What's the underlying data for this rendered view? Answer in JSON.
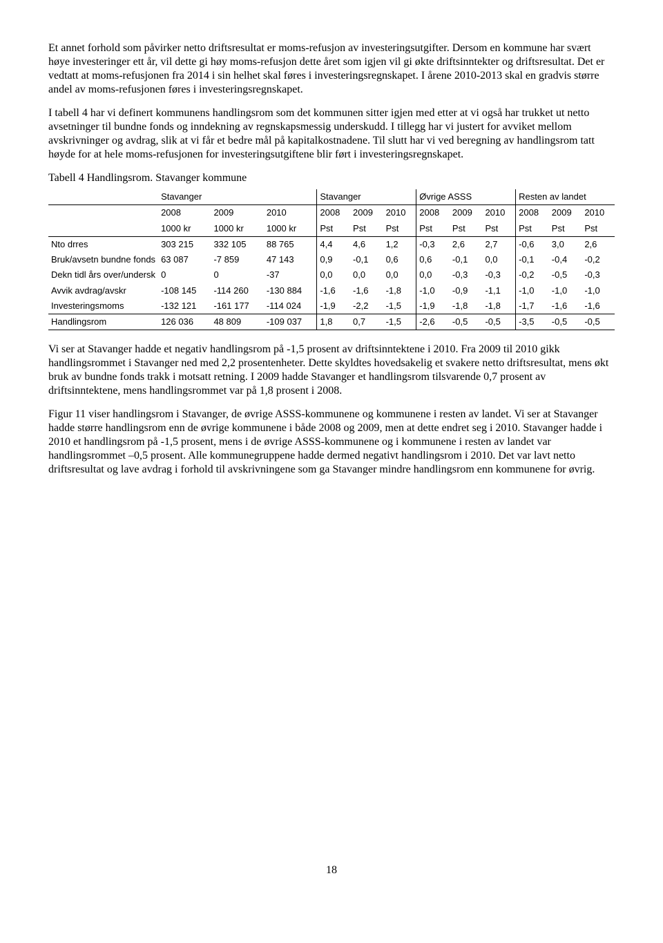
{
  "paragraphs": {
    "p1": "Et annet forhold som påvirker netto driftsresultat er moms-refusjon av investeringsutgifter. Dersom en kommune har svært høye investeringer ett år, vil dette gi høy moms-refusjon dette året som igjen vil gi økte driftsinntekter og driftsresultat. Det er vedtatt at moms-refusjonen fra 2014 i sin helhet skal føres i investeringsregnskapet. I årene 2010-2013 skal en gradvis større andel av moms-refusjonen føres i investeringsregnskapet.",
    "p2": "I tabell 4 har vi definert kommunens handlingsrom som det kommunen sitter igjen med etter at vi også har trukket ut netto avsetninger til bundne fonds og inndekning av regnskapsmessig underskudd. I tillegg har vi justert for avviket mellom avskrivninger og avdrag, slik at vi får et bedre mål på kapitalkostnadene. Til slutt har vi ved beregning av handlingsrom tatt høyde for at hele moms-refusjonen for investeringsutgiftene blir ført i investeringsregnskapet.",
    "p3": "Vi ser at Stavanger hadde et negativ handlingsrom på -1,5 prosent av driftsinntektene i 2010. Fra 2009 til 2010 gikk handlingsrommet i Stavanger ned med 2,2 prosentenheter. Dette skyldtes hovedsakelig et svakere netto driftsresultat, mens økt bruk av bundne fonds trakk i motsatt retning. I 2009 hadde Stavanger et handlingsrom tilsvarende 0,7 prosent av driftsinntektene, mens handlingsrommet var på 1,8 prosent i 2008.",
    "p4": "Figur 11 viser handlingsrom i Stavanger, de øvrige ASSS-kommunene og kommunene i resten av landet. Vi ser at Stavanger hadde større handlingsrom enn de øvrige kommunene i både 2008 og 2009, men at dette endret seg i 2010.  Stavanger hadde i 2010 et handlingsrom på -1,5 prosent, mens i de øvrige ASSS-kommunene og i kommunene i resten av landet var handlingsrommet –0,5 prosent. Alle kommunegruppene hadde dermed negativt handlingsrom i 2010. Det var lavt netto driftsresultat og lave avdrag i forhold til avskrivningene som ga Stavanger mindre handlingsrom enn kommunene for øvrig."
  },
  "table_caption": "Tabell 4 Handlingsrom. Stavanger kommune",
  "table": {
    "group_headers": [
      "Stavanger",
      "Stavanger",
      "Øvrige ASSS",
      "Resten av landet"
    ],
    "years": [
      "2008",
      "2009",
      "2010",
      "2008",
      "2009",
      "2010",
      "2008",
      "2009",
      "2010",
      "2008",
      "2009",
      "2010"
    ],
    "units": [
      "1000 kr",
      "1000 kr",
      "1000 kr",
      "Pst",
      "Pst",
      "Pst",
      "Pst",
      "Pst",
      "Pst",
      "Pst",
      "Pst",
      "Pst"
    ],
    "rows": [
      {
        "label": "Nto drres",
        "v": [
          "303 215",
          "332 105",
          "88 765",
          "4,4",
          "4,6",
          "1,2",
          "-0,3",
          "2,6",
          "2,7",
          "-0,6",
          "3,0",
          "2,6"
        ]
      },
      {
        "label": "Bruk/avsetn bundne fonds",
        "v": [
          "63 087",
          "-7 859",
          "47 143",
          "0,9",
          "-0,1",
          "0,6",
          "0,6",
          "-0,1",
          "0,0",
          "-0,1",
          "-0,4",
          "-0,2"
        ]
      },
      {
        "label": "Dekn tidl års over/undersk",
        "v": [
          "0",
          "0",
          "-37",
          "0,0",
          "0,0",
          "0,0",
          "0,0",
          "-0,3",
          "-0,3",
          "-0,2",
          "-0,5",
          "-0,3"
        ]
      },
      {
        "label": "Avvik avdrag/avskr",
        "v": [
          "-108 145",
          "-114 260",
          "-130 884",
          "-1,6",
          "-1,6",
          "-1,8",
          "-1,0",
          "-0,9",
          "-1,1",
          "-1,0",
          "-1,0",
          "-1,0"
        ]
      },
      {
        "label": "Investeringsmoms",
        "v": [
          "-132 121",
          "-161 177",
          "-114 024",
          "-1,9",
          "-2,2",
          "-1,5",
          "-1,9",
          "-1,8",
          "-1,8",
          "-1,7",
          "-1,6",
          "-1,6"
        ]
      },
      {
        "label": "Handlingsrom",
        "v": [
          "126 036",
          "48 809",
          "-109 037",
          "1,8",
          "0,7",
          "-1,5",
          "-2,6",
          "-0,5",
          "-0,5",
          "-3,5",
          "-0,5",
          "-0,5"
        ]
      }
    ]
  },
  "page_number": "18"
}
